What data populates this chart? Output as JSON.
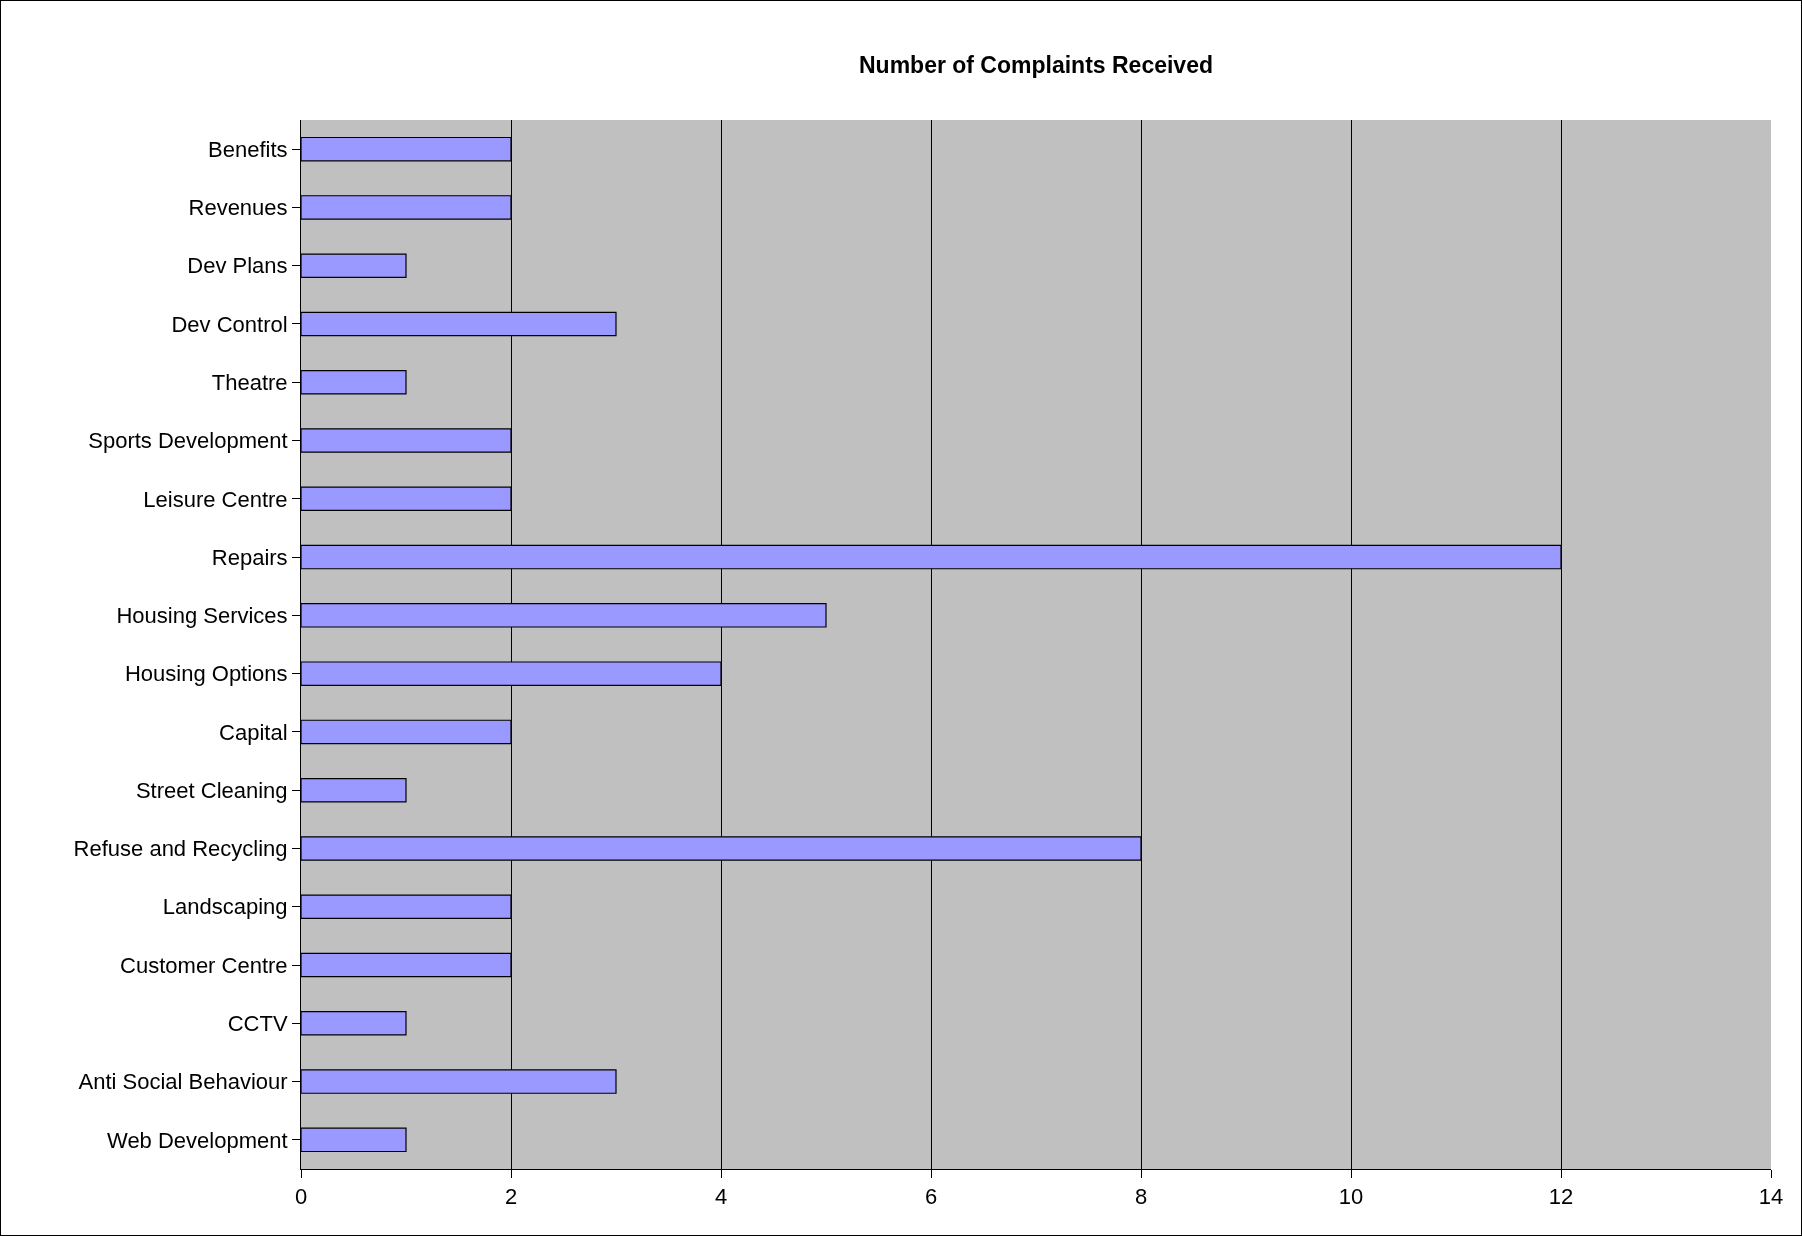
{
  "chart_data": {
    "type": "bar",
    "orientation": "horizontal",
    "title": "Number of Complaints Received",
    "categories": [
      "Benefits",
      "Revenues",
      "Dev Plans",
      "Dev Control",
      "Theatre",
      "Sports Development",
      "Leisure Centre",
      "Repairs",
      "Housing Services",
      "Housing Options",
      "Capital",
      "Street Cleaning",
      "Refuse and Recycling",
      "Landscaping",
      "Customer Centre",
      "CCTV",
      "Anti Social Behaviour",
      "Web Development"
    ],
    "values": [
      2,
      2,
      1,
      3,
      1,
      2,
      2,
      12,
      5,
      4,
      2,
      1,
      8,
      2,
      2,
      1,
      3,
      1
    ],
    "color": "#9999ff",
    "xlim": [
      0,
      14
    ],
    "xticks": [
      0,
      2,
      4,
      6,
      8,
      10,
      12,
      14
    ],
    "grid": "x",
    "legend": false
  }
}
